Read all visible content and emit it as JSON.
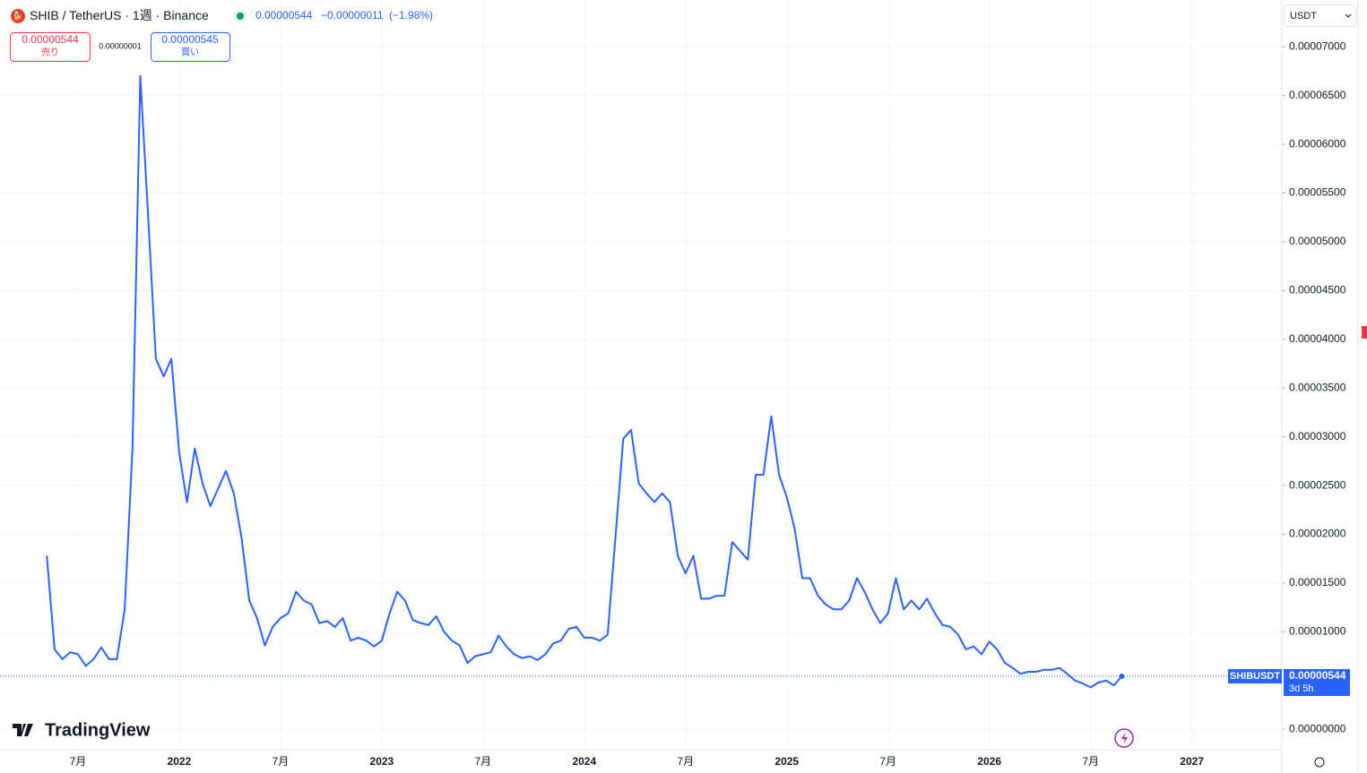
{
  "header": {
    "symbol": "SHIB",
    "pair": "TetherUS",
    "interval": "1週",
    "exchange": "Binance",
    "price": "0.00000544",
    "change": "−0.00000011",
    "change_pct": "−1.98%"
  },
  "trade": {
    "sell_price": "0.00000544",
    "sell_label": "売り",
    "spread": "0.00000001",
    "buy_price": "0.00000545",
    "buy_label": "買い"
  },
  "currency": "USDT",
  "logo": "TradingView",
  "chart_data": {
    "type": "line",
    "categories": [
      null,
      null,
      null,
      null,
      "7月",
      null,
      null,
      null,
      null,
      null,
      null,
      null,
      null,
      null,
      null,
      null,
      null,
      "2022",
      null,
      null,
      null,
      null,
      null,
      null,
      null,
      null,
      null,
      null,
      null,
      null,
      "7月",
      null,
      null,
      null,
      null,
      null,
      null,
      null,
      null,
      null,
      null,
      null,
      null,
      "2023",
      null,
      null,
      null,
      null,
      null,
      null,
      null,
      null,
      null,
      null,
      null,
      null,
      "7月",
      null,
      null,
      null,
      null,
      null,
      null,
      null,
      null,
      null,
      null,
      null,
      null,
      "2024",
      null,
      null,
      null,
      null,
      null,
      null,
      null,
      null,
      null,
      null,
      null,
      null,
      "7月",
      null,
      null,
      null,
      null,
      null,
      null,
      null,
      null,
      null,
      null,
      null,
      null,
      "2025",
      null,
      null,
      null,
      null,
      null,
      null,
      null,
      null,
      null,
      null,
      null,
      null,
      "7月",
      null,
      null,
      null,
      null,
      null,
      null,
      null,
      null,
      null,
      null,
      null,
      null,
      "2026",
      null,
      null,
      null,
      null,
      null,
      null,
      null,
      null,
      null,
      null,
      null,
      null,
      "7月",
      null,
      null,
      null,
      null,
      null,
      null,
      null,
      null,
      null,
      null,
      null,
      null,
      "2027"
    ],
    "series": [
      {
        "name": "SHIBUSDT",
        "color": "#2962ff",
        "values": [
          1.78e-05,
          8.2e-06,
          7.2e-06,
          7.9e-06,
          7.7e-06,
          6.5e-06,
          7.2e-06,
          8.4e-06,
          7.2e-06,
          7.2e-06,
          1.23e-05,
          2.88e-05,
          6.7e-05,
          5.27e-05,
          3.8e-05,
          3.62e-05,
          3.8e-05,
          2.84e-05,
          2.33e-05,
          2.88e-05,
          2.52e-05,
          2.29e-05,
          2.47e-05,
          2.65e-05,
          2.42e-05,
          1.97e-05,
          1.32e-05,
          1.14e-05,
          8.6e-06,
          1.05e-05,
          1.14e-05,
          1.19e-05,
          1.41e-05,
          1.32e-05,
          1.28e-05,
          1.09e-05,
          1.11e-05,
          1.05e-05,
          1.14e-05,
          9.1e-06,
          9.4e-06,
          9.1e-06,
          8.5e-06,
          9.1e-06,
          1.19e-05,
          1.41e-05,
          1.32e-05,
          1.12e-05,
          1.09e-05,
          1.07e-05,
          1.16e-05,
          1e-05,
          9.1e-06,
          8.6e-06,
          6.8e-06,
          7.5e-06,
          7.7e-06,
          7.9e-06,
          9.6e-06,
          8.5e-06,
          7.7e-06,
          7.3e-06,
          7.5e-06,
          7.1e-06,
          7.7e-06,
          8.8e-06,
          9.1e-06,
          1.03e-05,
          1.05e-05,
          9.4e-06,
          9.4e-06,
          9.1e-06,
          9.7e-06,
          1.97e-05,
          2.98e-05,
          3.07e-05,
          2.52e-05,
          2.42e-05,
          2.33e-05,
          2.42e-05,
          2.33e-05,
          1.78e-05,
          1.6e-05,
          1.78e-05,
          1.34e-05,
          1.34e-05,
          1.37e-05,
          1.37e-05,
          1.92e-05,
          1.83e-05,
          1.74e-05,
          2.61e-05,
          2.61e-05,
          3.21e-05,
          2.61e-05,
          2.38e-05,
          2.06e-05,
          1.55e-05,
          1.55e-05,
          1.37e-05,
          1.28e-05,
          1.23e-05,
          1.23e-05,
          1.32e-05,
          1.55e-05,
          1.41e-05,
          1.23e-05,
          1.09e-05,
          1.19e-05,
          1.55e-05,
          1.23e-05,
          1.32e-05,
          1.23e-05,
          1.34e-05,
          1.19e-05,
          1.07e-05,
          1.05e-05,
          9.7e-06,
          8.2e-06,
          8.5e-06,
          7.7e-06,
          9e-06,
          8.2e-06,
          6.8e-06,
          6.3e-06,
          5.7e-06,
          5.9e-06,
          5.9e-06,
          6.1e-06,
          6.1e-06,
          6.3e-06,
          5.7e-06,
          5e-06,
          4.7e-06,
          4.3e-06,
          4.8e-06,
          5e-06,
          4.5e-06,
          5.44e-06,
          null,
          null,
          null,
          null,
          null,
          null,
          null,
          null,
          null
        ]
      }
    ],
    "last_price_label": "0.00000544",
    "countdown": "3d 5h",
    "ylim": [
      -2e-06,
      7.48e-05
    ],
    "yticks": [
      {
        "value": 7e-05,
        "label": "0.00007000"
      },
      {
        "value": 6.5e-05,
        "label": "0.00006500"
      },
      {
        "value": 6e-05,
        "label": "0.00006000"
      },
      {
        "value": 5.5e-05,
        "label": "0.00005500"
      },
      {
        "value": 5e-05,
        "label": "0.00005000"
      },
      {
        "value": 4.5e-05,
        "label": "0.00004500"
      },
      {
        "value": 4e-05,
        "label": "0.00004000"
      },
      {
        "value": 3.5e-05,
        "label": "0.00003500"
      },
      {
        "value": 3e-05,
        "label": "0.00003000"
      },
      {
        "value": 2.5e-05,
        "label": "0.00002500"
      },
      {
        "value": 2e-05,
        "label": "0.00002000"
      },
      {
        "value": 1.5e-05,
        "label": "0.00001500"
      },
      {
        "value": 1e-05,
        "label": "0.00001000"
      },
      {
        "value": 0,
        "label": "0.00000000"
      }
    ],
    "grid": true
  }
}
